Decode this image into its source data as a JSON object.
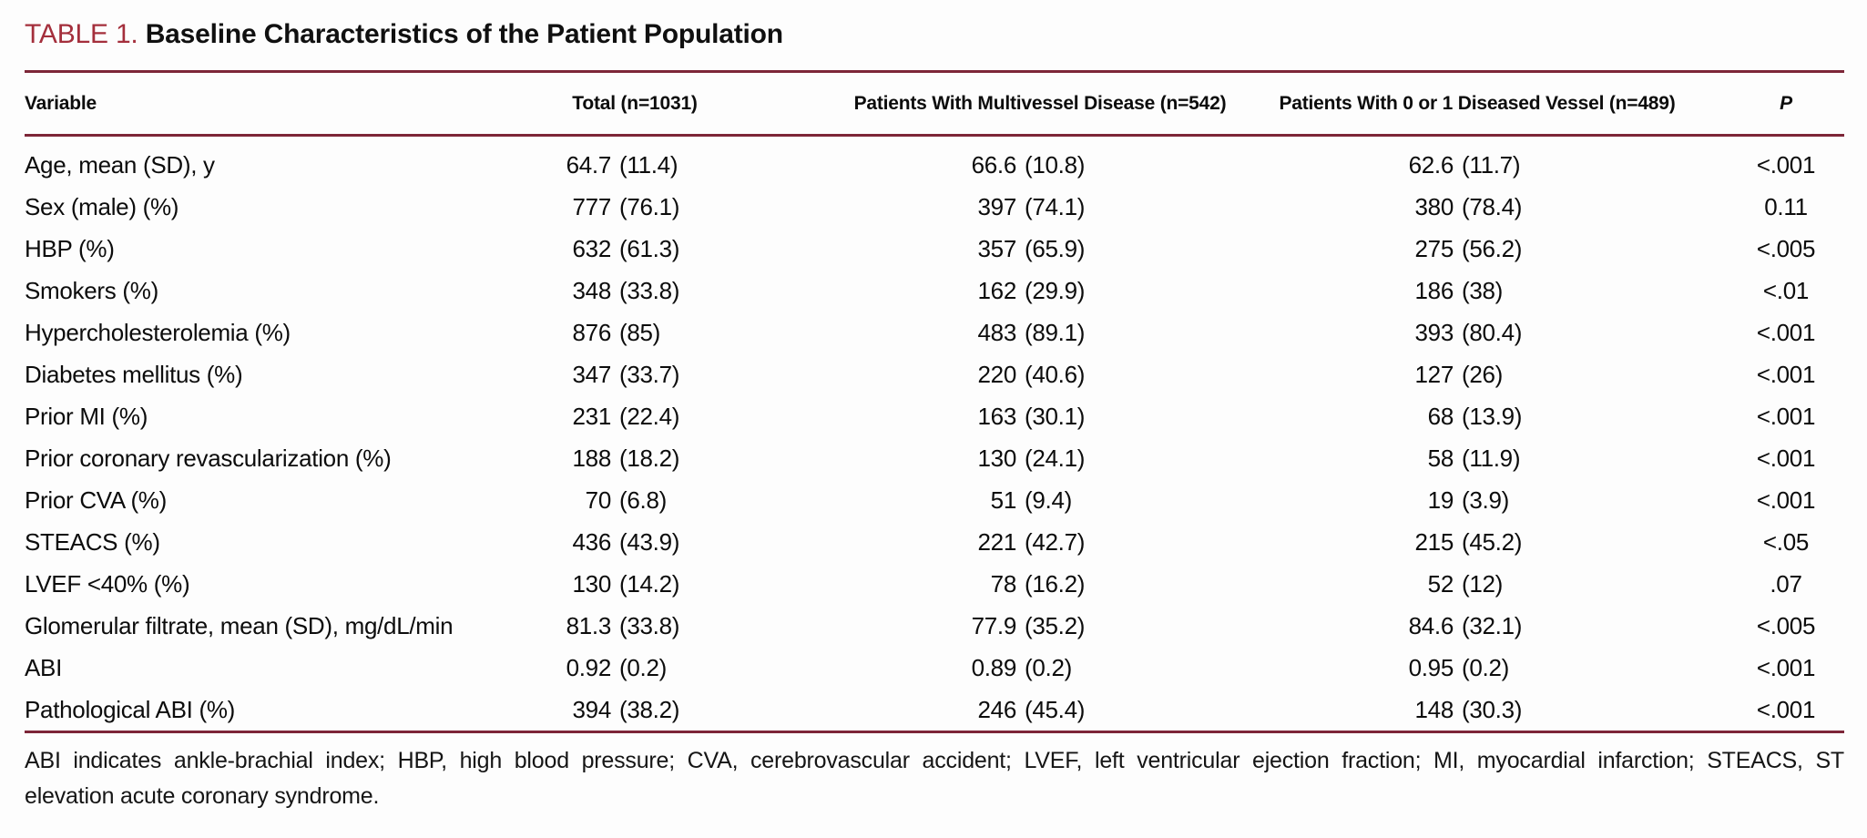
{
  "table": {
    "label": "TABLE 1.",
    "title": "Baseline Characteristics of the Patient Population",
    "columns": [
      "Variable",
      "Total (n=1031)",
      "Patients With Multivessel Disease (n=542)",
      "Patients With 0 or 1 Diseased Vessel (n=489)",
      "P"
    ],
    "rows": [
      {
        "variable": "Age, mean (SD), y",
        "total": "64.7 (11.4)",
        "multivessel": "66.6 (10.8)",
        "zero_or_one": "62.6 (11.7)",
        "p": "<.001"
      },
      {
        "variable": "Sex (male) (%)",
        "total": "777 (76.1)",
        "multivessel": "397 (74.1)",
        "zero_or_one": "380 (78.4)",
        "p": "0.11"
      },
      {
        "variable": "HBP (%)",
        "total": "632 (61.3)",
        "multivessel": "357 (65.9)",
        "zero_or_one": "275 (56.2)",
        "p": "<.005"
      },
      {
        "variable": "Smokers (%)",
        "total": "348 (33.8)",
        "multivessel": "162 (29.9)",
        "zero_or_one": "186 (38)",
        "p": "<.01"
      },
      {
        "variable": "Hypercholesterolemia (%)",
        "total": "876 (85)",
        "multivessel": "483 (89.1)",
        "zero_or_one": "393 (80.4)",
        "p": "<.001"
      },
      {
        "variable": "Diabetes mellitus (%)",
        "total": "347 (33.7)",
        "multivessel": "220 (40.6)",
        "zero_or_one": "127 (26)",
        "p": "<.001"
      },
      {
        "variable": "Prior MI (%)",
        "total": "231 (22.4)",
        "multivessel": "163 (30.1)",
        "zero_or_one": "68 (13.9)",
        "p": "<.001"
      },
      {
        "variable": "Prior coronary revascularization (%)",
        "total": "188 (18.2)",
        "multivessel": "130 (24.1)",
        "zero_or_one": "58 (11.9)",
        "p": "<.001"
      },
      {
        "variable": "Prior CVA (%)",
        "total": "70 (6.8)",
        "multivessel": "51 (9.4)",
        "zero_or_one": "19 (3.9)",
        "p": "<.001"
      },
      {
        "variable": "STEACS (%)",
        "total": "436 (43.9)",
        "multivessel": "221 (42.7)",
        "zero_or_one": "215 (45.2)",
        "p": "<.05"
      },
      {
        "variable": "LVEF <40% (%)",
        "total": "130 (14.2)",
        "multivessel": "78 (16.2)",
        "zero_or_one": "52 (12)",
        "p": ".07"
      },
      {
        "variable": "Glomerular filtrate, mean (SD), mg/dL/min",
        "total": "81.3 (33.8)",
        "multivessel": "77.9 (35.2)",
        "zero_or_one": "84.6 (32.1)",
        "p": "<.005"
      },
      {
        "variable": "ABI",
        "total": "0.92 (0.2)",
        "multivessel": "0.89 (0.2)",
        "zero_or_one": "0.95 (0.2)",
        "p": "<.001"
      },
      {
        "variable": "Pathological ABI (%)",
        "total": "394 (38.2)",
        "multivessel": "246 (45.4)",
        "zero_or_one": "148 (30.3)",
        "p": "<.001"
      }
    ],
    "footnote_line1": "ABI indicates ankle-brachial index; HBP, high blood pressure; CVA, cerebrovascular accident; LVEF, left ventricular ejection fraction; MI, myocardial infarction; STEACS, ST",
    "footnote_line2": "elevation acute coronary syndrome."
  },
  "colors": {
    "accent_label": "#a42f3c",
    "rule": "#7d2638",
    "text": "#0c0c0c"
  }
}
